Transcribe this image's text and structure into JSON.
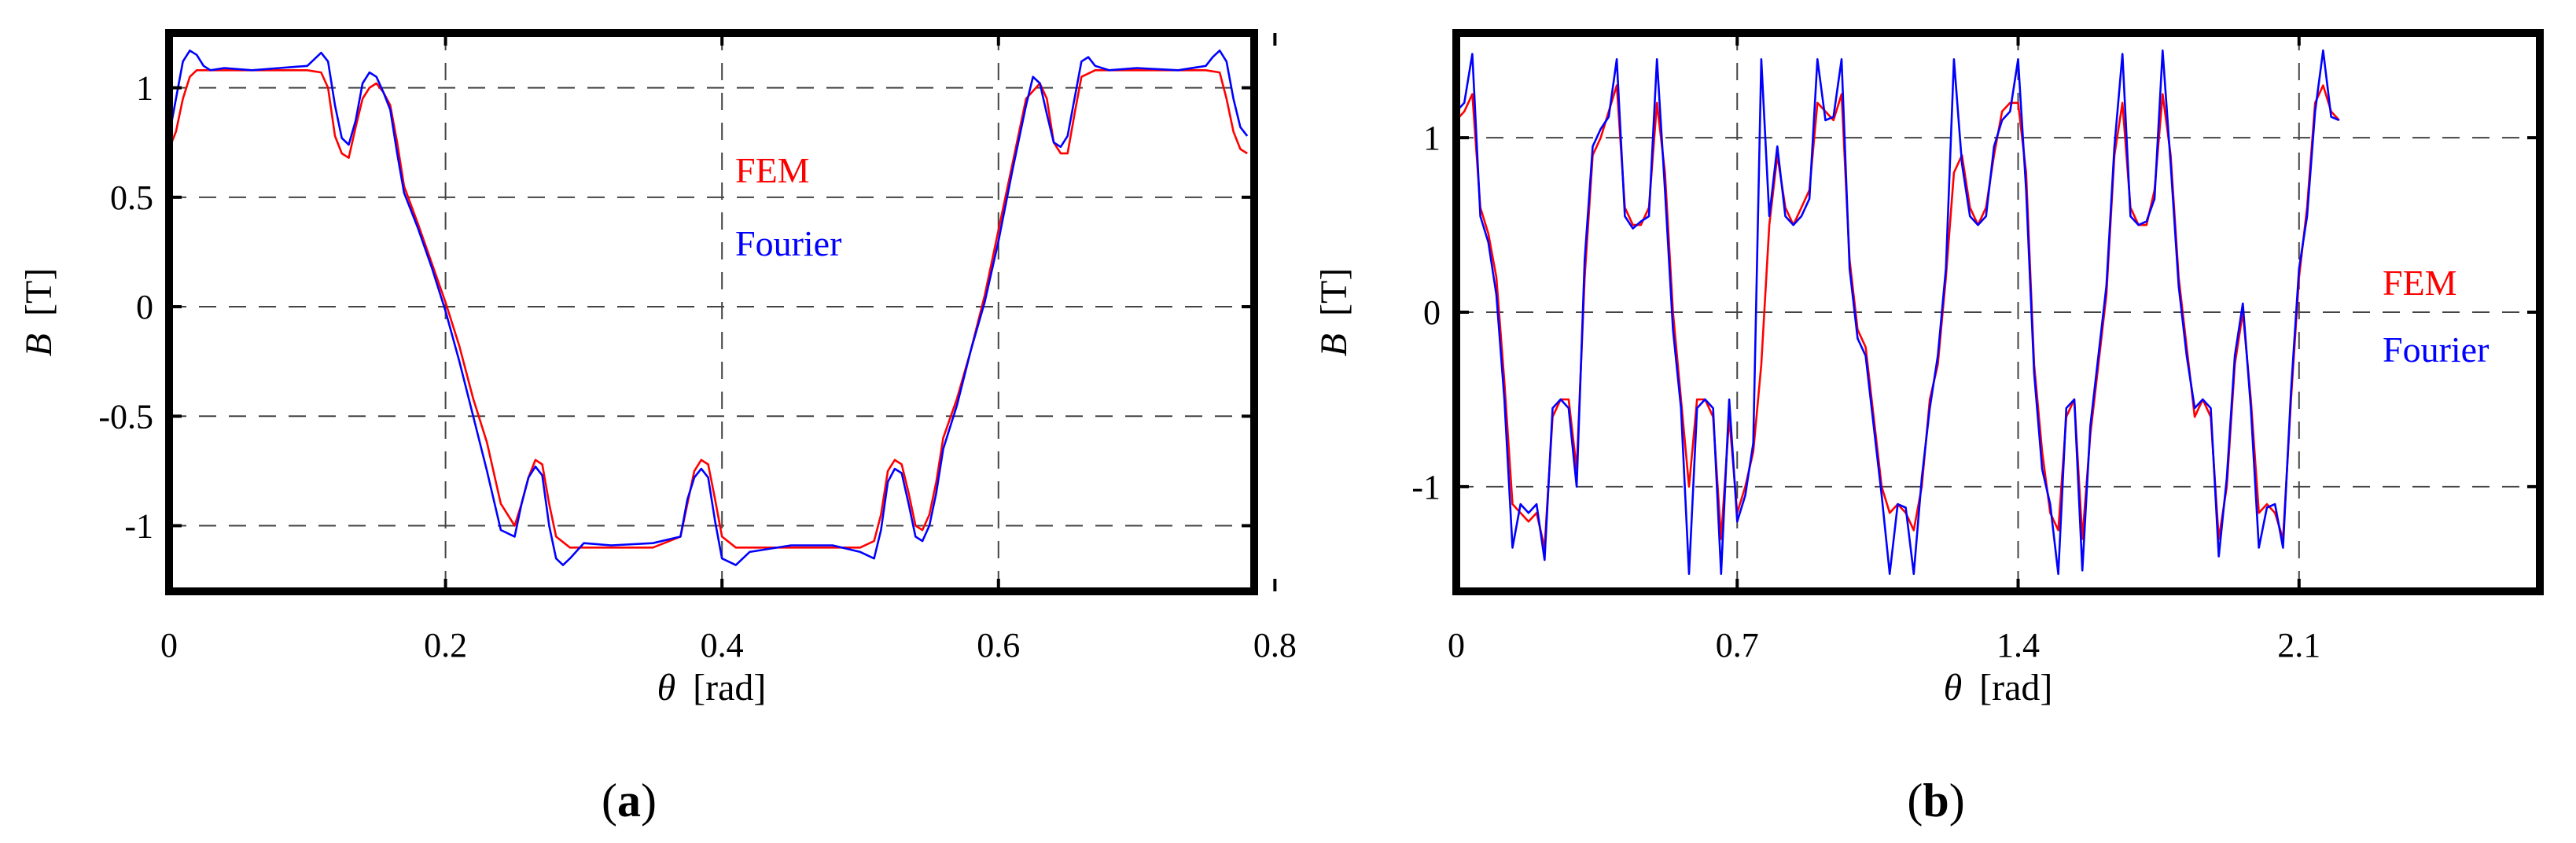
{
  "chart_data": [
    {
      "type": "line",
      "panel_label": "(a)",
      "panel_letter": "a",
      "xlabel_symbol": "θ",
      "xlabel_unit": "[rad]",
      "ylabel_symbol": "B",
      "ylabel_unit": "[T]",
      "xlim": [
        0,
        0.785
      ],
      "ylim": [
        -1.3,
        1.25
      ],
      "xticks": [
        0,
        0.2,
        0.4,
        0.6,
        0.8
      ],
      "xtick_labels": [
        "0",
        "0.2",
        "0.4",
        "0.6",
        "0.8"
      ],
      "yticks": [
        1,
        0.5,
        0,
        -0.5,
        -1
      ],
      "ytick_labels": [
        "1",
        "0.5",
        "0",
        "-0.5",
        "-1"
      ],
      "grid": true,
      "legend_position": "upper-center",
      "series": [
        {
          "name": "FEM",
          "color": "#ff0000",
          "x": [
            0,
            0.005,
            0.01,
            0.015,
            0.02,
            0.03,
            0.05,
            0.08,
            0.1,
            0.11,
            0.115,
            0.12,
            0.125,
            0.13,
            0.135,
            0.14,
            0.145,
            0.15,
            0.155,
            0.16,
            0.165,
            0.17,
            0.18,
            0.19,
            0.2,
            0.21,
            0.22,
            0.23,
            0.24,
            0.25,
            0.255,
            0.26,
            0.265,
            0.27,
            0.275,
            0.28,
            0.29,
            0.3,
            0.32,
            0.35,
            0.37,
            0.375,
            0.38,
            0.385,
            0.39,
            0.395,
            0.4,
            0.41,
            0.42,
            0.45,
            0.48,
            0.5,
            0.51,
            0.515,
            0.52,
            0.525,
            0.53,
            0.535,
            0.54,
            0.545,
            0.55,
            0.555,
            0.56,
            0.57,
            0.58,
            0.59,
            0.6,
            0.61,
            0.62,
            0.63,
            0.635,
            0.64,
            0.645,
            0.65,
            0.655,
            0.66,
            0.67,
            0.7,
            0.73,
            0.75,
            0.76,
            0.765,
            0.77,
            0.775,
            0.78
          ],
          "y": [
            0.72,
            0.8,
            0.95,
            1.05,
            1.08,
            1.08,
            1.08,
            1.08,
            1.08,
            1.07,
            1.0,
            0.78,
            0.7,
            0.68,
            0.82,
            0.95,
            1.0,
            1.02,
            0.98,
            0.92,
            0.75,
            0.55,
            0.38,
            0.2,
            0.02,
            -0.18,
            -0.42,
            -0.62,
            -0.9,
            -1.0,
            -0.9,
            -0.78,
            -0.7,
            -0.72,
            -0.9,
            -1.05,
            -1.1,
            -1.1,
            -1.1,
            -1.1,
            -1.05,
            -0.9,
            -0.75,
            -0.7,
            -0.72,
            -0.88,
            -1.05,
            -1.1,
            -1.1,
            -1.1,
            -1.1,
            -1.1,
            -1.07,
            -0.95,
            -0.75,
            -0.7,
            -0.72,
            -0.85,
            -1.0,
            -1.02,
            -0.95,
            -0.8,
            -0.6,
            -0.42,
            -0.2,
            0.05,
            0.35,
            0.65,
            0.95,
            1.02,
            0.95,
            0.75,
            0.7,
            0.7,
            0.88,
            1.05,
            1.08,
            1.08,
            1.08,
            1.08,
            1.07,
            0.95,
            0.8,
            0.72,
            0.7
          ]
        },
        {
          "name": "Fourier",
          "color": "#0000ff",
          "x": [
            0,
            0.005,
            0.01,
            0.015,
            0.02,
            0.025,
            0.03,
            0.04,
            0.06,
            0.08,
            0.1,
            0.105,
            0.11,
            0.115,
            0.12,
            0.125,
            0.13,
            0.135,
            0.14,
            0.145,
            0.15,
            0.155,
            0.16,
            0.165,
            0.17,
            0.18,
            0.19,
            0.2,
            0.21,
            0.22,
            0.23,
            0.24,
            0.25,
            0.255,
            0.26,
            0.265,
            0.27,
            0.275,
            0.28,
            0.285,
            0.29,
            0.3,
            0.32,
            0.35,
            0.37,
            0.375,
            0.38,
            0.385,
            0.39,
            0.395,
            0.4,
            0.41,
            0.42,
            0.45,
            0.48,
            0.5,
            0.51,
            0.515,
            0.52,
            0.525,
            0.53,
            0.535,
            0.54,
            0.545,
            0.55,
            0.555,
            0.56,
            0.57,
            0.58,
            0.59,
            0.6,
            0.61,
            0.62,
            0.625,
            0.63,
            0.635,
            0.64,
            0.645,
            0.65,
            0.655,
            0.66,
            0.665,
            0.67,
            0.68,
            0.7,
            0.73,
            0.75,
            0.755,
            0.76,
            0.765,
            0.77,
            0.775,
            0.78
          ],
          "y": [
            0.78,
            0.95,
            1.12,
            1.17,
            1.15,
            1.1,
            1.08,
            1.09,
            1.08,
            1.09,
            1.1,
            1.13,
            1.16,
            1.12,
            0.92,
            0.77,
            0.74,
            0.85,
            1.02,
            1.07,
            1.05,
            0.98,
            0.9,
            0.7,
            0.52,
            0.36,
            0.18,
            -0.02,
            -0.25,
            -0.5,
            -0.75,
            -1.02,
            -1.05,
            -0.9,
            -0.78,
            -0.73,
            -0.77,
            -1.0,
            -1.15,
            -1.18,
            -1.15,
            -1.08,
            -1.09,
            -1.08,
            -1.05,
            -0.88,
            -0.78,
            -0.74,
            -0.78,
            -0.98,
            -1.15,
            -1.18,
            -1.12,
            -1.09,
            -1.09,
            -1.12,
            -1.15,
            -1.02,
            -0.8,
            -0.74,
            -0.76,
            -0.9,
            -1.05,
            -1.07,
            -1.0,
            -0.85,
            -0.65,
            -0.45,
            -0.2,
            0.02,
            0.3,
            0.62,
            0.92,
            1.05,
            1.02,
            0.88,
            0.75,
            0.73,
            0.78,
            0.95,
            1.12,
            1.14,
            1.1,
            1.08,
            1.09,
            1.08,
            1.1,
            1.14,
            1.17,
            1.12,
            0.95,
            0.82,
            0.78
          ]
        }
      ]
    },
    {
      "type": "line",
      "panel_label": "(b)",
      "panel_letter": "b",
      "xlabel_symbol": "θ",
      "xlabel_unit": "[rad]",
      "ylabel_symbol": "B",
      "ylabel_unit": "[T]",
      "xlim": [
        0,
        2.7
      ],
      "ylim": [
        -1.6,
        1.6
      ],
      "xticks": [
        0,
        0.7,
        1.4,
        2.1
      ],
      "xtick_labels": [
        "0",
        "0.7",
        "1.4",
        "2.1"
      ],
      "yticks": [
        1,
        0,
        -1
      ],
      "ytick_labels": [
        "1",
        "0",
        "-1"
      ],
      "grid": true,
      "legend_position": "right",
      "series": [
        {
          "name": "FEM",
          "color": "#ff0000",
          "x": [
            0,
            0.02,
            0.04,
            0.06,
            0.08,
            0.1,
            0.12,
            0.14,
            0.16,
            0.18,
            0.2,
            0.22,
            0.24,
            0.26,
            0.28,
            0.3,
            0.32,
            0.34,
            0.36,
            0.38,
            0.4,
            0.42,
            0.44,
            0.46,
            0.48,
            0.5,
            0.52,
            0.54,
            0.56,
            0.58,
            0.6,
            0.62,
            0.64,
            0.66,
            0.68,
            0.7,
            0.72,
            0.74,
            0.76,
            0.78,
            0.8,
            0.82,
            0.84,
            0.86,
            0.88,
            0.9,
            0.92,
            0.94,
            0.96,
            0.98,
            1.0,
            1.02,
            1.04,
            1.06,
            1.08,
            1.1,
            1.12,
            1.14,
            1.16,
            1.18,
            1.2,
            1.22,
            1.24,
            1.26,
            1.28,
            1.3,
            1.32,
            1.34,
            1.36,
            1.38,
            1.4,
            1.42,
            1.44,
            1.46,
            1.48,
            1.5,
            1.52,
            1.54,
            1.56,
            1.58,
            1.6,
            1.62,
            1.64,
            1.66,
            1.68,
            1.7,
            1.72,
            1.74,
            1.76,
            1.78,
            1.8,
            1.82,
            1.84,
            1.86,
            1.88,
            1.9,
            1.92,
            1.94,
            1.96,
            1.98,
            2.0,
            2.02,
            2.04,
            2.06,
            2.08,
            2.1,
            2.12,
            2.14,
            2.16,
            2.18,
            2.2
          ],
          "y": [
            1.1,
            1.15,
            1.25,
            0.6,
            0.45,
            0.2,
            -0.4,
            -1.1,
            -1.15,
            -1.2,
            -1.15,
            -1.35,
            -0.6,
            -0.5,
            -0.5,
            -0.9,
            0.2,
            0.9,
            1.0,
            1.15,
            1.3,
            0.6,
            0.5,
            0.5,
            0.6,
            1.2,
            0.8,
            0.0,
            -0.5,
            -1.0,
            -0.5,
            -0.5,
            -0.6,
            -1.3,
            -0.6,
            -1.15,
            -1.0,
            -0.8,
            -0.3,
            0.5,
            0.9,
            0.6,
            0.5,
            0.6,
            0.7,
            1.2,
            1.15,
            1.1,
            1.25,
            0.3,
            -0.1,
            -0.2,
            -0.6,
            -1.0,
            -1.15,
            -1.1,
            -1.15,
            -1.25,
            -1.0,
            -0.5,
            -0.3,
            0.2,
            0.8,
            0.9,
            0.6,
            0.5,
            0.6,
            0.9,
            1.15,
            1.2,
            1.2,
            0.8,
            -0.3,
            -0.8,
            -1.15,
            -1.25,
            -0.6,
            -0.5,
            -1.3,
            -0.7,
            -0.3,
            0.1,
            0.9,
            1.2,
            0.6,
            0.5,
            0.5,
            0.7,
            1.25,
            0.9,
            0.2,
            -0.2,
            -0.6,
            -0.5,
            -0.6,
            -1.3,
            -1.0,
            -0.3,
            0.0,
            -0.5,
            -1.15,
            -1.1,
            -1.15,
            -1.3,
            -0.5,
            0.2,
            0.6,
            1.2,
            1.3,
            1.15,
            1.1
          ]
        },
        {
          "name": "Fourier",
          "color": "#0000ff",
          "x": [
            0,
            0.02,
            0.04,
            0.06,
            0.08,
            0.1,
            0.12,
            0.14,
            0.16,
            0.18,
            0.2,
            0.22,
            0.24,
            0.26,
            0.28,
            0.3,
            0.32,
            0.34,
            0.36,
            0.38,
            0.4,
            0.42,
            0.44,
            0.46,
            0.48,
            0.5,
            0.52,
            0.54,
            0.56,
            0.58,
            0.6,
            0.62,
            0.64,
            0.66,
            0.68,
            0.7,
            0.72,
            0.74,
            0.76,
            0.78,
            0.8,
            0.82,
            0.84,
            0.86,
            0.88,
            0.9,
            0.92,
            0.94,
            0.96,
            0.98,
            1.0,
            1.02,
            1.04,
            1.06,
            1.08,
            1.1,
            1.12,
            1.14,
            1.16,
            1.18,
            1.2,
            1.22,
            1.24,
            1.26,
            1.28,
            1.3,
            1.32,
            1.34,
            1.36,
            1.38,
            1.4,
            1.42,
            1.44,
            1.46,
            1.48,
            1.5,
            1.52,
            1.54,
            1.56,
            1.58,
            1.6,
            1.62,
            1.64,
            1.66,
            1.68,
            1.7,
            1.72,
            1.74,
            1.76,
            1.78,
            1.8,
            1.82,
            1.84,
            1.86,
            1.88,
            1.9,
            1.92,
            1.94,
            1.96,
            1.98,
            2.0,
            2.02,
            2.04,
            2.06,
            2.08,
            2.1,
            2.12,
            2.14,
            2.16,
            2.18,
            2.2
          ],
          "y": [
            1.15,
            1.2,
            1.48,
            0.55,
            0.4,
            0.1,
            -0.5,
            -1.35,
            -1.1,
            -1.15,
            -1.1,
            -1.42,
            -0.55,
            -0.5,
            -0.55,
            -1.0,
            0.3,
            0.95,
            1.05,
            1.12,
            1.45,
            0.55,
            0.48,
            0.52,
            0.55,
            1.45,
            0.7,
            -0.1,
            -0.55,
            -1.5,
            -0.55,
            -0.5,
            -0.55,
            -1.5,
            -0.5,
            -1.2,
            -1.05,
            -0.75,
            1.45,
            0.55,
            0.95,
            0.55,
            0.5,
            0.55,
            0.65,
            1.45,
            1.1,
            1.12,
            1.45,
            0.25,
            -0.15,
            -0.25,
            -0.65,
            -1.05,
            -1.5,
            -1.1,
            -1.12,
            -1.5,
            -0.95,
            -0.55,
            -0.25,
            0.25,
            1.45,
            0.85,
            0.55,
            0.5,
            0.55,
            0.95,
            1.1,
            1.15,
            1.45,
            0.7,
            -0.35,
            -0.9,
            -1.1,
            -1.5,
            -0.55,
            -0.5,
            -1.48,
            -0.65,
            -0.25,
            0.15,
            0.95,
            1.48,
            0.55,
            0.5,
            0.52,
            0.65,
            1.5,
            0.85,
            0.15,
            -0.25,
            -0.55,
            -0.5,
            -0.55,
            -1.4,
            -0.95,
            -0.25,
            0.05,
            -0.55,
            -1.35,
            -1.12,
            -1.1,
            -1.35,
            -0.45,
            0.25,
            0.55,
            1.15,
            1.5,
            1.12,
            1.1
          ]
        }
      ]
    }
  ]
}
